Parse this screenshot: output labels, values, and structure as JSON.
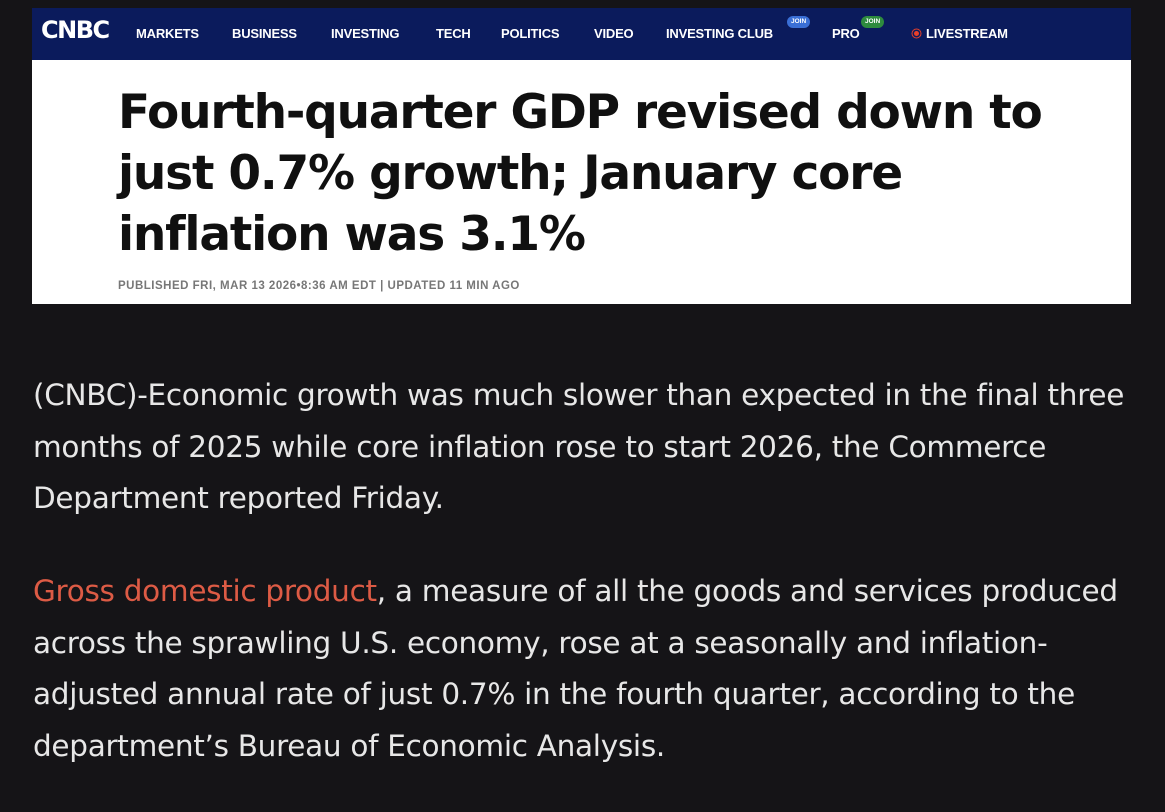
{
  "nav": {
    "logo": "CNBC",
    "items": [
      "MARKETS",
      "BUSINESS",
      "INVESTING",
      "TECH",
      "POLITICS",
      "VIDEO",
      "INVESTING CLUB",
      "PRO",
      "LIVESTREAM"
    ],
    "investing_club_badge": "JOIN",
    "pro_badge": "JOIN"
  },
  "article": {
    "headline": "Fourth-quarter GDP revised down to just 0.7% growth; January core inflation was 3.1%",
    "meta": "PUBLISHED FRI, MAR 13 2026•8:36 AM EDT | UPDATED 11 MIN AGO"
  },
  "body": {
    "paragraph1": "(CNBC)-Economic growth was much slower than expected in the final three months of 2025 while core inflation rose to start 2026, the Commerce Department reported Friday.",
    "paragraph2_link": "Gross domestic product",
    "paragraph2_rest": ", a measure of all the goods and services produced across the sprawling U.S. economy, rose at a seasonally and inflation-adjusted annual rate of just 0.7% in the fourth quarter, according to the department’s Bureau of Economic Analysis."
  },
  "colors": {
    "nav_bg": "#0b1b5c",
    "page_bg": "#151417",
    "link": "#dd5b45",
    "live_dot": "#e8402a"
  }
}
